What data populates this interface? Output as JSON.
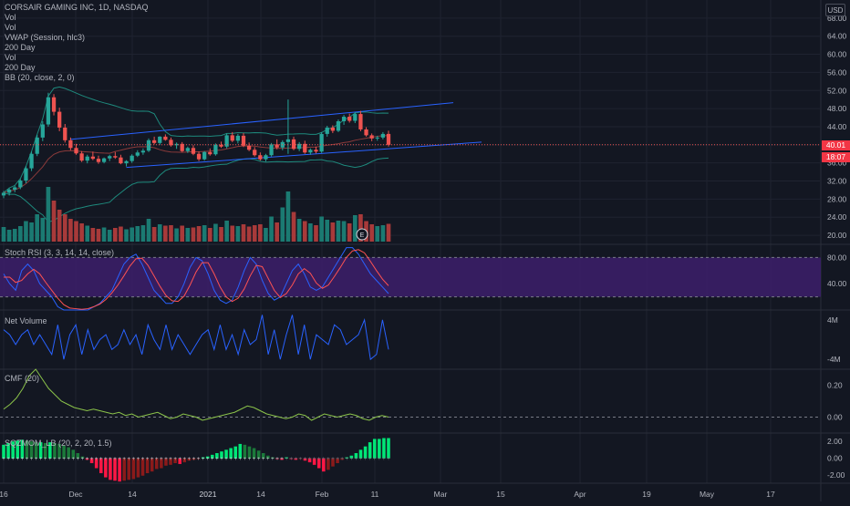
{
  "header": {
    "title": "CORSAIR GAMING INC, 1D, NASDAQ",
    "currency": "USD"
  },
  "legend": [
    "Vol",
    "Vol",
    "VWAP (Session, hlc3)",
    "200 Day",
    "Vol",
    "200 Day",
    "BB (20, close, 2, 0)"
  ],
  "last_price": "40.01",
  "countdown": "18:07",
  "earnings_marker": "E",
  "colors": {
    "up": "#26a69a",
    "down": "#ef5350",
    "bg": "#131722",
    "grid": "#1f2330",
    "channel": "#2962ff"
  },
  "chart_data": [
    {
      "type": "candlestick",
      "title": "CORSAIR GAMING INC, 1D, NASDAQ",
      "x_tick_labels": [
        "16",
        "Dec",
        "14",
        "2021",
        "14",
        "Feb",
        "11",
        "Mar",
        "15",
        "Apr",
        "19",
        "May",
        "17"
      ],
      "y_tick_labels": [
        "68.00",
        "64.00",
        "60.00",
        "56.00",
        "52.00",
        "48.00",
        "44.00",
        "40.00",
        "36.00",
        "32.00",
        "28.00",
        "24.00",
        "20.00"
      ],
      "ylim": [
        18,
        72
      ],
      "grid": true,
      "ohlc": [
        [
          28.8,
          29.8,
          28.2,
          29.4
        ],
        [
          29.4,
          30.4,
          28.8,
          30.1
        ],
        [
          30.1,
          31.0,
          29.5,
          30.6
        ],
        [
          30.6,
          32.4,
          30.2,
          32.1
        ],
        [
          32.1,
          35.3,
          31.5,
          34.8
        ],
        [
          34.8,
          38.5,
          34.2,
          38.0
        ],
        [
          38.0,
          42.2,
          37.5,
          41.6
        ],
        [
          41.6,
          45.2,
          40.8,
          44.5
        ],
        [
          44.5,
          51.5,
          44.0,
          50.5
        ],
        [
          50.5,
          51.2,
          46.5,
          47.3
        ],
        [
          47.3,
          48.2,
          43.0,
          43.8
        ],
        [
          43.8,
          44.6,
          40.5,
          41.0
        ],
        [
          41.0,
          41.6,
          38.8,
          39.3
        ],
        [
          39.3,
          40.2,
          37.8,
          38.1
        ],
        [
          38.1,
          38.6,
          36.2,
          36.5
        ],
        [
          36.5,
          37.8,
          35.9,
          37.4
        ],
        [
          37.4,
          38.5,
          36.6,
          36.9
        ],
        [
          36.9,
          37.6,
          35.8,
          36.2
        ],
        [
          36.2,
          37.2,
          35.9,
          37.0
        ],
        [
          37.0,
          37.8,
          36.4,
          37.5
        ],
        [
          37.5,
          38.4,
          36.9,
          37.2
        ],
        [
          37.2,
          37.8,
          35.7,
          35.9
        ],
        [
          35.9,
          36.6,
          35.2,
          36.4
        ],
        [
          36.4,
          37.9,
          36.0,
          37.6
        ],
        [
          37.6,
          38.8,
          37.3,
          38.3
        ],
        [
          38.3,
          39.2,
          37.8,
          38.7
        ],
        [
          38.7,
          41.4,
          38.4,
          41.0
        ],
        [
          41.0,
          41.8,
          40.1,
          40.4
        ],
        [
          40.4,
          41.9,
          40.0,
          41.8
        ],
        [
          41.8,
          42.3,
          40.9,
          41.1
        ],
        [
          41.1,
          41.6,
          39.6,
          39.9
        ],
        [
          39.9,
          40.5,
          39.1,
          40.2
        ],
        [
          40.2,
          40.6,
          38.4,
          38.6
        ],
        [
          38.6,
          39.6,
          38.2,
          39.3
        ],
        [
          39.3,
          39.9,
          37.7,
          38.0
        ],
        [
          38.0,
          38.5,
          36.4,
          36.8
        ],
        [
          36.8,
          38.6,
          36.5,
          38.4
        ],
        [
          38.4,
          39.2,
          37.6,
          37.9
        ],
        [
          37.9,
          40.3,
          37.6,
          40.0
        ],
        [
          40.0,
          40.7,
          39.3,
          39.6
        ],
        [
          39.6,
          42.5,
          39.2,
          42.1
        ],
        [
          42.1,
          42.8,
          40.6,
          40.9
        ],
        [
          40.9,
          42.4,
          40.3,
          42.0
        ],
        [
          42.0,
          42.6,
          39.5,
          39.8
        ],
        [
          39.8,
          40.5,
          38.6,
          38.9
        ],
        [
          38.9,
          39.5,
          37.4,
          37.7
        ],
        [
          37.7,
          38.3,
          36.5,
          36.8
        ],
        [
          36.8,
          38.0,
          36.3,
          37.7
        ],
        [
          37.7,
          40.4,
          37.4,
          40.1
        ],
        [
          40.1,
          41.2,
          39.0,
          39.4
        ],
        [
          39.4,
          41.0,
          38.8,
          40.6
        ],
        [
          40.6,
          50.0,
          38.0,
          41.2
        ],
        [
          41.2,
          41.8,
          38.8,
          39.1
        ],
        [
          39.1,
          40.6,
          38.6,
          40.2
        ],
        [
          40.2,
          40.9,
          38.0,
          38.3
        ],
        [
          38.3,
          39.2,
          37.8,
          38.9
        ],
        [
          38.9,
          39.6,
          38.1,
          38.5
        ],
        [
          38.5,
          42.8,
          38.2,
          42.4
        ],
        [
          42.4,
          44.2,
          41.8,
          43.8
        ],
        [
          43.8,
          44.3,
          42.6,
          43.1
        ],
        [
          43.1,
          45.6,
          42.8,
          45.2
        ],
        [
          45.2,
          46.6,
          44.4,
          46.2
        ],
        [
          46.2,
          46.9,
          44.9,
          45.3
        ],
        [
          45.3,
          47.2,
          44.8,
          46.8
        ],
        [
          46.8,
          47.5,
          43.0,
          43.4
        ],
        [
          43.4,
          43.9,
          41.8,
          42.1
        ],
        [
          42.1,
          42.5,
          40.8,
          41.4
        ],
        [
          41.4,
          42.0,
          40.9,
          41.6
        ],
        [
          41.6,
          42.8,
          41.2,
          42.4
        ],
        [
          42.4,
          43.1,
          39.6,
          40.0
        ]
      ],
      "volume": [
        [
          3.2,
          1
        ],
        [
          2.6,
          1
        ],
        [
          2.8,
          1
        ],
        [
          3.4,
          1
        ],
        [
          4.5,
          1
        ],
        [
          4.2,
          1
        ],
        [
          6.0,
          1
        ],
        [
          5.2,
          1
        ],
        [
          12.0,
          1
        ],
        [
          9.0,
          0
        ],
        [
          7.0,
          0
        ],
        [
          6.0,
          0
        ],
        [
          5.0,
          0
        ],
        [
          4.5,
          0
        ],
        [
          4.0,
          0
        ],
        [
          3.5,
          1
        ],
        [
          3.0,
          0
        ],
        [
          2.8,
          0
        ],
        [
          3.1,
          1
        ],
        [
          2.6,
          1
        ],
        [
          3.0,
          0
        ],
        [
          3.3,
          0
        ],
        [
          2.7,
          1
        ],
        [
          3.1,
          1
        ],
        [
          3.4,
          1
        ],
        [
          3.6,
          1
        ],
        [
          5.0,
          1
        ],
        [
          3.2,
          0
        ],
        [
          3.8,
          1
        ],
        [
          3.5,
          0
        ],
        [
          3.6,
          0
        ],
        [
          2.9,
          1
        ],
        [
          3.5,
          0
        ],
        [
          3.0,
          1
        ],
        [
          3.1,
          0
        ],
        [
          3.4,
          0
        ],
        [
          3.6,
          1
        ],
        [
          3.0,
          0
        ],
        [
          3.9,
          1
        ],
        [
          3.2,
          0
        ],
        [
          4.6,
          1
        ],
        [
          3.5,
          0
        ],
        [
          3.4,
          1
        ],
        [
          3.8,
          0
        ],
        [
          3.3,
          0
        ],
        [
          3.6,
          0
        ],
        [
          3.8,
          0
        ],
        [
          3.0,
          1
        ],
        [
          5.5,
          1
        ],
        [
          4.2,
          0
        ],
        [
          7.5,
          1
        ],
        [
          11.0,
          1
        ],
        [
          6.5,
          0
        ],
        [
          5.0,
          1
        ],
        [
          4.5,
          0
        ],
        [
          4.0,
          1
        ],
        [
          3.6,
          0
        ],
        [
          5.5,
          1
        ],
        [
          4.8,
          1
        ],
        [
          4.2,
          0
        ],
        [
          4.6,
          1
        ],
        [
          4.5,
          1
        ],
        [
          4.0,
          0
        ],
        [
          5.8,
          1
        ],
        [
          6.0,
          0
        ],
        [
          4.5,
          0
        ],
        [
          3.8,
          0
        ],
        [
          3.4,
          1
        ],
        [
          3.6,
          1
        ],
        [
          3.9,
          0
        ]
      ]
    },
    {
      "type": "line",
      "title": "Stoch RSI (3, 3, 14, 14, close)",
      "y_tick_labels": [
        "80.00",
        "40.00"
      ],
      "ylim": [
        0,
        100
      ],
      "band": [
        20,
        80
      ],
      "series": [
        {
          "color": "#2962ff",
          "values": [
            55,
            40,
            30,
            60,
            70,
            60,
            40,
            30,
            20,
            5,
            0,
            0,
            0,
            0,
            0,
            5,
            10,
            20,
            30,
            50,
            70,
            80,
            85,
            70,
            50,
            30,
            20,
            10,
            10,
            20,
            40,
            65,
            80,
            75,
            55,
            30,
            15,
            10,
            15,
            35,
            60,
            80,
            70,
            45,
            25,
            15,
            20,
            40,
            60,
            70,
            55,
            35,
            30,
            35,
            50,
            65,
            80,
            95,
            95,
            85,
            70,
            55,
            45,
            35,
            25
          ]
        },
        {
          "color": "#ff5252",
          "values": [
            50,
            50,
            42,
            45,
            55,
            62,
            55,
            42,
            30,
            18,
            8,
            3,
            2,
            1,
            2,
            5,
            9,
            16,
            26,
            38,
            52,
            67,
            78,
            79,
            68,
            52,
            36,
            22,
            14,
            13,
            21,
            38,
            58,
            72,
            72,
            55,
            35,
            20,
            13,
            18,
            32,
            52,
            68,
            66,
            48,
            30,
            19,
            25,
            38,
            55,
            63,
            56,
            41,
            33,
            38,
            51,
            65,
            80,
            90,
            92,
            87,
            74,
            60,
            47,
            37
          ]
        }
      ]
    },
    {
      "type": "line",
      "title": "Net Volume",
      "y_tick_labels": [
        "4M",
        "-4M"
      ],
      "ylim": [
        -6,
        6
      ],
      "series": [
        {
          "color": "#2962ff",
          "values": [
            2,
            1,
            -1,
            1,
            2,
            -1,
            1,
            -1,
            -3,
            3,
            -4,
            1,
            3,
            -3,
            2,
            -2,
            0,
            1,
            -2,
            -1,
            2,
            -1,
            1,
            -3,
            3,
            0,
            -2,
            3,
            -2,
            1,
            -1,
            -3,
            -1,
            1,
            2,
            -2,
            3,
            -2,
            1,
            -3,
            2,
            -1,
            0,
            5,
            -3,
            2,
            -4,
            1,
            5,
            -3,
            3,
            -4,
            1,
            0,
            -1,
            3,
            2,
            -1,
            0,
            1,
            4,
            -4,
            -3,
            4,
            -2
          ]
        }
      ]
    },
    {
      "type": "line",
      "title": "CMF (20)",
      "y_tick_labels": [
        "0.20",
        "0.00"
      ],
      "ylim": [
        -0.1,
        0.3
      ],
      "series": [
        {
          "color": "#8bc34a",
          "values": [
            0.05,
            0.08,
            0.12,
            0.18,
            0.26,
            0.3,
            0.24,
            0.18,
            0.14,
            0.1,
            0.08,
            0.06,
            0.05,
            0.04,
            0.05,
            0.04,
            0.03,
            0.02,
            0.03,
            0.01,
            0.02,
            0.0,
            0.01,
            0.02,
            0.03,
            0.01,
            -0.01,
            0.0,
            0.02,
            0.01,
            0.0,
            -0.02,
            -0.01,
            0.0,
            0.01,
            0.02,
            0.03,
            0.05,
            0.07,
            0.06,
            0.04,
            0.02,
            0.01,
            0.0,
            -0.01,
            0.0,
            0.02,
            0.01,
            -0.02,
            0.0,
            0.02,
            0.01,
            0.0,
            0.01,
            0.02,
            0.01,
            -0.01,
            -0.02,
            0.0,
            0.01,
            0.0
          ]
        }
      ]
    },
    {
      "type": "bar",
      "title": "SQZMOM_LB (20, 2, 20, 1.5)",
      "y_tick_labels": [
        "2.00",
        "0.00",
        "-2.00"
      ],
      "ylim": [
        -3,
        3
      ],
      "values": [
        1.6,
        1.8,
        2.0,
        2.1,
        2.2,
        2.1,
        2.0,
        1.9,
        1.9,
        1.8,
        1.9,
        1.8,
        1.7,
        1.5,
        1.3,
        1.0,
        0.6,
        0.2,
        -0.2,
        -0.6,
        -1.2,
        -1.8,
        -2.3,
        -2.6,
        -2.7,
        -2.8,
        -2.7,
        -2.6,
        -2.5,
        -2.3,
        -2.1,
        -1.8,
        -1.6,
        -1.3,
        -1.2,
        -0.9,
        -0.8,
        -0.6,
        -0.7,
        -0.5,
        -0.3,
        -0.2,
        -0.1,
        0.1,
        0.2,
        0.4,
        0.6,
        0.8,
        1.0,
        1.2,
        1.4,
        1.7,
        1.6,
        1.4,
        1.2,
        0.9,
        0.6,
        0.3,
        0.1,
        -0.1,
        -0.2,
        0.1,
        -0.1,
        -0.2,
        -0.1,
        -0.3,
        -0.5,
        -0.8,
        -1.2,
        -1.6,
        -1.4,
        -1.0,
        -0.6,
        -0.2,
        0.1,
        0.3,
        0.6,
        1.0,
        1.4,
        1.9,
        2.3,
        2.3,
        2.4,
        2.4
      ]
    }
  ]
}
